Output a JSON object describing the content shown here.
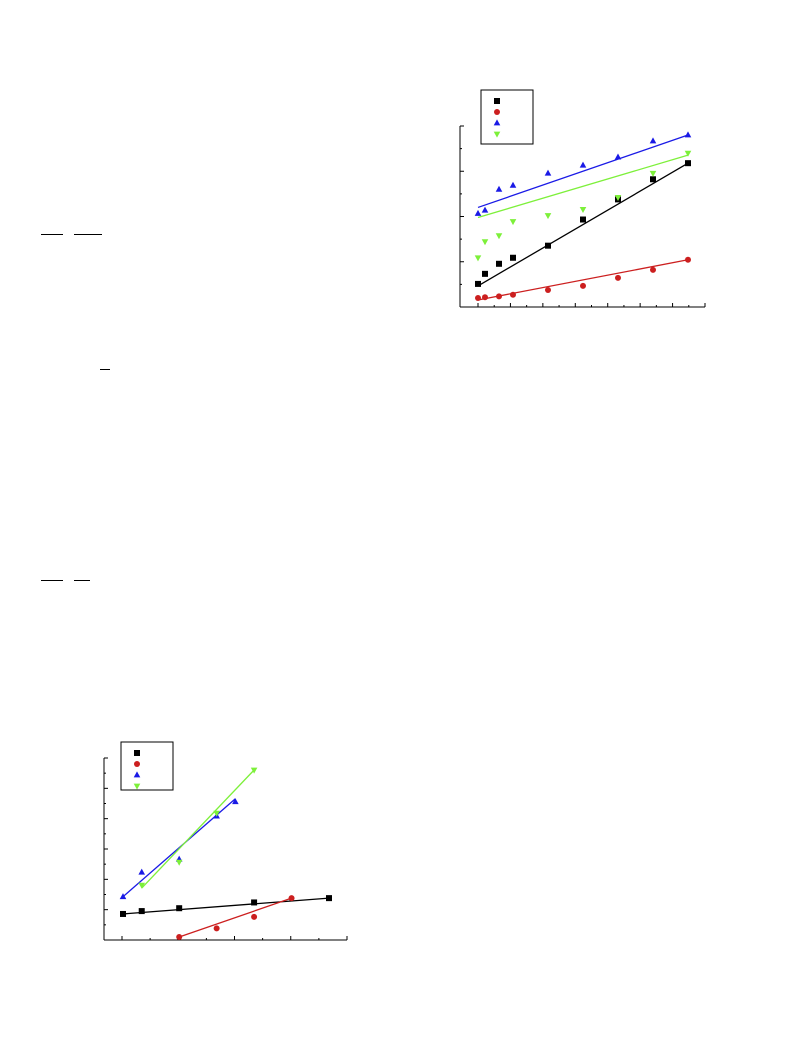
{
  "colors": {
    "black": "#000000",
    "red": "#cc1f1f",
    "blue": "#1a1ae6",
    "green": "#7df03a"
  },
  "chart_data": [
    {
      "type": "scatter",
      "title": "",
      "xlabel": "",
      "ylabel": "",
      "xlim": [
        -0.3,
        6.2
      ],
      "ylim": [
        -0.15,
        4.2
      ],
      "legend": "top-left",
      "grid": false,
      "series": [
        {
          "color": "#000000",
          "marker": "square",
          "x": [
            0,
            0.2,
            0.6,
            1,
            2,
            3,
            4,
            5,
            6
          ],
          "y": [
            0.35,
            0.6,
            0.85,
            1.0,
            1.3,
            1.95,
            2.45,
            2.95,
            3.35
          ],
          "fit": [
            [
              0,
              0.3
            ],
            [
              6,
              3.35
            ]
          ]
        },
        {
          "color": "#cc1f1f",
          "marker": "circle",
          "x": [
            0,
            0.2,
            0.6,
            1,
            2,
            3,
            4,
            5,
            6
          ],
          "y": [
            0.0,
            0.02,
            0.04,
            0.08,
            0.2,
            0.3,
            0.5,
            0.7,
            0.95
          ],
          "fit": [
            [
              0,
              -0.05
            ],
            [
              6,
              0.95
            ]
          ]
        },
        {
          "color": "#1a1ae6",
          "marker": "triangle-up",
          "x": [
            0,
            0.2,
            0.6,
            1,
            2,
            3,
            4,
            5,
            6
          ],
          "y": [
            2.1,
            2.18,
            2.7,
            2.8,
            3.1,
            3.3,
            3.5,
            3.9,
            4.05
          ],
          "fit": [
            [
              0,
              2.25
            ],
            [
              6,
              4.05
            ]
          ]
        },
        {
          "color": "#7df03a",
          "marker": "triangle-down",
          "x": [
            0,
            0.2,
            0.6,
            1,
            2,
            3,
            4,
            5,
            6
          ],
          "y": [
            1.0,
            1.4,
            1.55,
            1.9,
            2.05,
            2.2,
            2.5,
            3.1,
            3.6
          ],
          "fit": [
            [
              0,
              2.0
            ],
            [
              6,
              3.55
            ]
          ]
        }
      ]
    },
    {
      "type": "scatter",
      "title": "",
      "xlabel": "",
      "ylabel": "",
      "xlim": [
        -0.3,
        5.5
      ],
      "ylim": [
        -0.2,
        6.0
      ],
      "legend": "top-left",
      "grid": false,
      "series": [
        {
          "color": "#000000",
          "marker": "square",
          "x": [
            0,
            0.5,
            1.5,
            3.5,
            5.5
          ],
          "y": [
            0.6,
            0.7,
            0.8,
            1.0,
            1.15
          ],
          "fit": [
            [
              0,
              0.6
            ],
            [
              5.5,
              1.15
            ]
          ]
        },
        {
          "color": "#cc1f1f",
          "marker": "circle",
          "x": [
            1.5,
            2.5,
            3.5,
            4.5
          ],
          "y": [
            -0.2,
            0.1,
            0.5,
            1.15
          ],
          "fit": [
            [
              1.5,
              -0.2
            ],
            [
              4.5,
              1.15
            ]
          ]
        },
        {
          "color": "#1a1ae6",
          "marker": "triangle-up",
          "x": [
            0,
            0.5,
            1.5,
            2.5,
            3.0
          ],
          "y": [
            1.2,
            2.05,
            2.5,
            4.0,
            4.5
          ],
          "fit": [
            [
              0,
              1.2
            ],
            [
              3.0,
              4.6
            ]
          ]
        },
        {
          "color": "#7df03a",
          "marker": "triangle-down",
          "x": [
            0.5,
            1.5,
            2.5,
            3.5
          ],
          "y": [
            1.6,
            2.4,
            4.1,
            5.6
          ],
          "fit": [
            [
              0.5,
              1.5
            ],
            [
              3.5,
              5.6
            ]
          ]
        }
      ]
    }
  ]
}
